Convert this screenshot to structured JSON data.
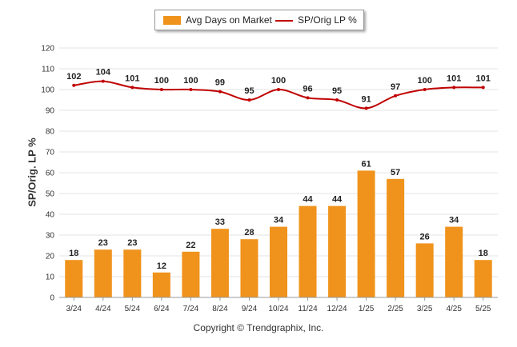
{
  "chart_data": {
    "type": "bar",
    "categories": [
      "3/24",
      "4/24",
      "5/24",
      "6/24",
      "7/24",
      "8/24",
      "9/24",
      "10/24",
      "11/24",
      "12/24",
      "1/25",
      "2/25",
      "3/25",
      "4/25",
      "5/25"
    ],
    "series": [
      {
        "name": "Avg Days on Market",
        "type": "bar",
        "color": "#f0931c",
        "values": [
          18,
          23,
          23,
          12,
          22,
          33,
          28,
          34,
          44,
          44,
          61,
          57,
          26,
          34,
          18
        ]
      },
      {
        "name": "SP/Orig LP %",
        "type": "line",
        "color": "#c00000",
        "values": [
          102,
          104,
          101,
          100,
          100,
          99,
          95,
          100,
          96,
          95,
          91,
          97,
          100,
          101,
          101
        ]
      }
    ],
    "ylabel": "SP/Orig. LP %",
    "ylim": [
      0,
      120
    ],
    "yticks": [
      0,
      10,
      20,
      30,
      40,
      50,
      60,
      70,
      80,
      90,
      100,
      110,
      120
    ],
    "grid": true,
    "legend_position": "top-center"
  },
  "legend": {
    "bar_label": "Avg Days on Market",
    "line_label": "SP/Orig LP %"
  },
  "footer": {
    "copyright": "Copyright © Trendgraphix, Inc."
  }
}
